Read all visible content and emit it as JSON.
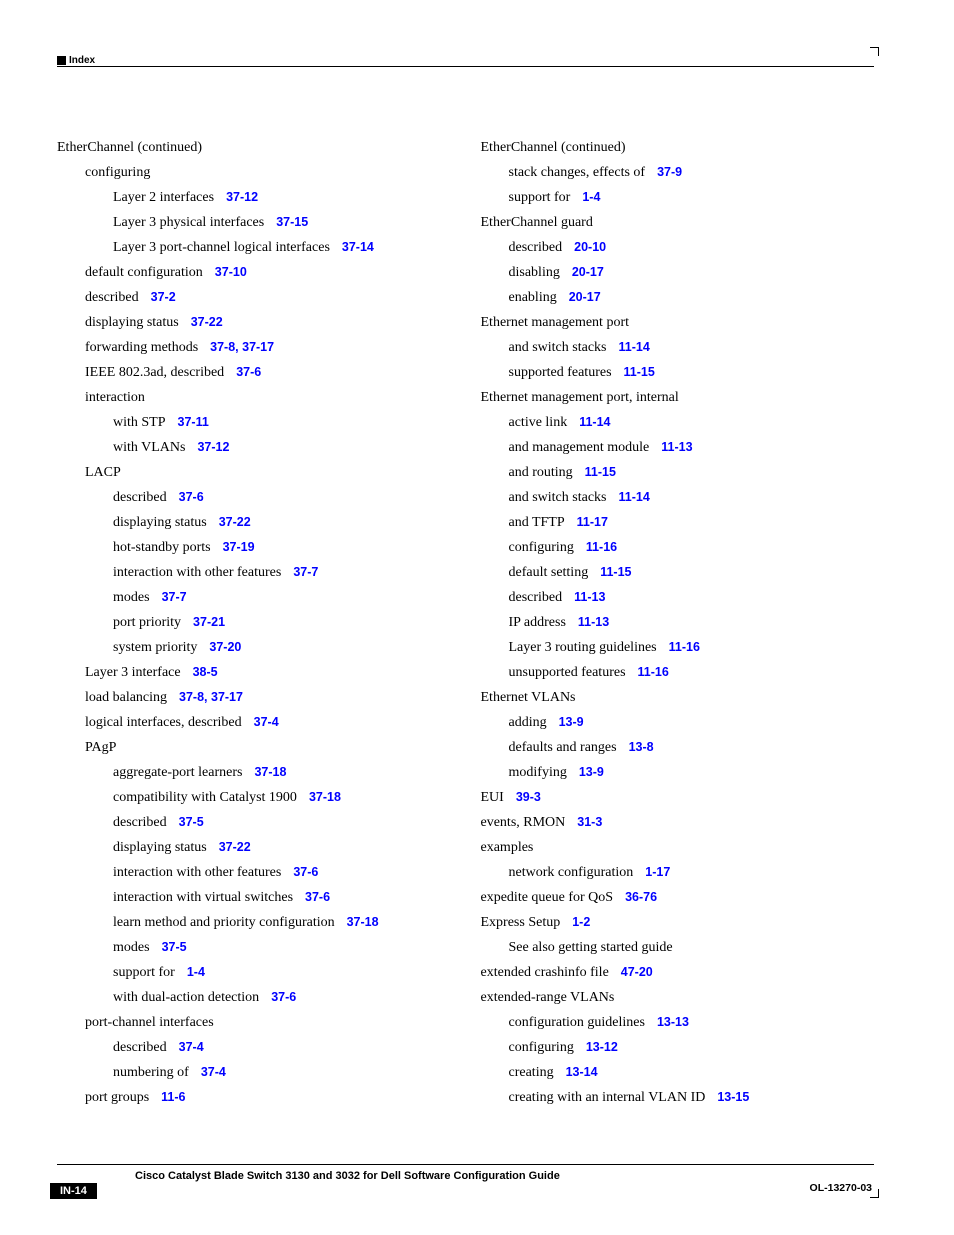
{
  "header": {
    "label": "Index"
  },
  "left_col": [
    {
      "indent": 0,
      "label": "EtherChannel (continued)"
    },
    {
      "indent": 1,
      "label": "configuring"
    },
    {
      "indent": 2,
      "label": "Layer 2 interfaces",
      "ref": "37-12"
    },
    {
      "indent": 2,
      "label": "Layer 3 physical interfaces",
      "ref": "37-15"
    },
    {
      "indent": 2,
      "label": "Layer 3 port-channel logical interfaces",
      "ref": "37-14"
    },
    {
      "indent": 1,
      "label": "default configuration",
      "ref": "37-10"
    },
    {
      "indent": 1,
      "label": "described",
      "ref": "37-2"
    },
    {
      "indent": 1,
      "label": "displaying status",
      "ref": "37-22"
    },
    {
      "indent": 1,
      "label": "forwarding methods",
      "ref": "37-8, 37-17"
    },
    {
      "indent": 1,
      "label": "IEEE 802.3ad, described",
      "ref": "37-6"
    },
    {
      "indent": 1,
      "label": "interaction"
    },
    {
      "indent": 2,
      "label": "with STP",
      "ref": "37-11"
    },
    {
      "indent": 2,
      "label": "with VLANs",
      "ref": "37-12"
    },
    {
      "indent": 1,
      "label": "LACP"
    },
    {
      "indent": 2,
      "label": "described",
      "ref": "37-6"
    },
    {
      "indent": 2,
      "label": "displaying status",
      "ref": "37-22"
    },
    {
      "indent": 2,
      "label": "hot-standby ports",
      "ref": "37-19"
    },
    {
      "indent": 2,
      "label": "interaction with other features",
      "ref": "37-7"
    },
    {
      "indent": 2,
      "label": "modes",
      "ref": "37-7"
    },
    {
      "indent": 2,
      "label": "port priority",
      "ref": "37-21"
    },
    {
      "indent": 2,
      "label": "system priority",
      "ref": "37-20"
    },
    {
      "indent": 1,
      "label": "Layer 3 interface",
      "ref": "38-5"
    },
    {
      "indent": 1,
      "label": "load balancing",
      "ref": "37-8, 37-17"
    },
    {
      "indent": 1,
      "label": "logical interfaces, described",
      "ref": "37-4"
    },
    {
      "indent": 1,
      "label": "PAgP"
    },
    {
      "indent": 2,
      "label": "aggregate-port learners",
      "ref": "37-18"
    },
    {
      "indent": 2,
      "label": "compatibility with Catalyst 1900",
      "ref": "37-18"
    },
    {
      "indent": 2,
      "label": "described",
      "ref": "37-5"
    },
    {
      "indent": 2,
      "label": "displaying status",
      "ref": "37-22"
    },
    {
      "indent": 2,
      "label": "interaction with other features",
      "ref": "37-6"
    },
    {
      "indent": 2,
      "label": "interaction with virtual switches",
      "ref": "37-6"
    },
    {
      "indent": 2,
      "label": "learn method and priority configuration",
      "ref": "37-18"
    },
    {
      "indent": 2,
      "label": "modes",
      "ref": "37-5"
    },
    {
      "indent": 2,
      "label": "support for",
      "ref": "1-4"
    },
    {
      "indent": 2,
      "label": "with dual-action detection",
      "ref": "37-6"
    },
    {
      "indent": 1,
      "label": "port-channel interfaces"
    },
    {
      "indent": 2,
      "label": "described",
      "ref": "37-4"
    },
    {
      "indent": 2,
      "label": "numbering of",
      "ref": "37-4"
    },
    {
      "indent": 1,
      "label": "port groups",
      "ref": "11-6"
    }
  ],
  "right_col": [
    {
      "indent": 0,
      "label": "EtherChannel (continued)"
    },
    {
      "indent": 1,
      "label": "stack changes, effects of",
      "ref": "37-9"
    },
    {
      "indent": 1,
      "label": "support for",
      "ref": "1-4"
    },
    {
      "indent": 0,
      "label": "EtherChannel guard"
    },
    {
      "indent": 1,
      "label": "described",
      "ref": "20-10"
    },
    {
      "indent": 1,
      "label": "disabling",
      "ref": "20-17"
    },
    {
      "indent": 1,
      "label": "enabling",
      "ref": "20-17"
    },
    {
      "indent": 0,
      "label": "Ethernet management port"
    },
    {
      "indent": 1,
      "label": "and switch stacks",
      "ref": "11-14"
    },
    {
      "indent": 1,
      "label": "supported features",
      "ref": "11-15"
    },
    {
      "indent": 0,
      "label": "Ethernet management port, internal"
    },
    {
      "indent": 1,
      "label": "active link",
      "ref": "11-14"
    },
    {
      "indent": 1,
      "label": "and management module",
      "ref": "11-13"
    },
    {
      "indent": 1,
      "label": "and routing",
      "ref": "11-15"
    },
    {
      "indent": 1,
      "label": "and switch stacks",
      "ref": "11-14"
    },
    {
      "indent": 1,
      "label": "and TFTP",
      "ref": "11-17"
    },
    {
      "indent": 1,
      "label": "configuring",
      "ref": "11-16"
    },
    {
      "indent": 1,
      "label": "default setting",
      "ref": "11-15"
    },
    {
      "indent": 1,
      "label": "described",
      "ref": "11-13"
    },
    {
      "indent": 1,
      "label": "IP address",
      "ref": "11-13"
    },
    {
      "indent": 1,
      "label": "Layer 3 routing guidelines",
      "ref": "11-16"
    },
    {
      "indent": 1,
      "label": "unsupported features",
      "ref": "11-16"
    },
    {
      "indent": 0,
      "label": "Ethernet VLANs"
    },
    {
      "indent": 1,
      "label": "adding",
      "ref": "13-9"
    },
    {
      "indent": 1,
      "label": "defaults and ranges",
      "ref": "13-8"
    },
    {
      "indent": 1,
      "label": "modifying",
      "ref": "13-9"
    },
    {
      "indent": 0,
      "label": "EUI",
      "ref": "39-3"
    },
    {
      "indent": 0,
      "label": "events, RMON",
      "ref": "31-3"
    },
    {
      "indent": 0,
      "label": "examples"
    },
    {
      "indent": 1,
      "label": "network configuration",
      "ref": "1-17"
    },
    {
      "indent": 0,
      "label": "expedite queue for QoS",
      "ref": "36-76"
    },
    {
      "indent": 0,
      "label": "Express Setup",
      "ref": "1-2"
    },
    {
      "indent": 1,
      "label": "See also getting started guide"
    },
    {
      "indent": 0,
      "label": "extended crashinfo file",
      "ref": "47-20"
    },
    {
      "indent": 0,
      "label": "extended-range VLANs"
    },
    {
      "indent": 1,
      "label": "configuration guidelines",
      "ref": "13-13"
    },
    {
      "indent": 1,
      "label": "configuring",
      "ref": "13-12"
    },
    {
      "indent": 1,
      "label": "creating",
      "ref": "13-14"
    },
    {
      "indent": 1,
      "label": "creating with an internal VLAN ID",
      "ref": "13-15"
    }
  ],
  "footer": {
    "title": "Cisco Catalyst Blade Switch 3130 and 3032 for Dell Software Configuration Guide",
    "page": "IN-14",
    "doc_id": "OL-13270-03"
  },
  "styles": {
    "link_color": "#0000ff",
    "text_color": "#000000",
    "bg_color": "#ffffff",
    "body_font": "Times New Roman",
    "ref_font": "Arial"
  }
}
